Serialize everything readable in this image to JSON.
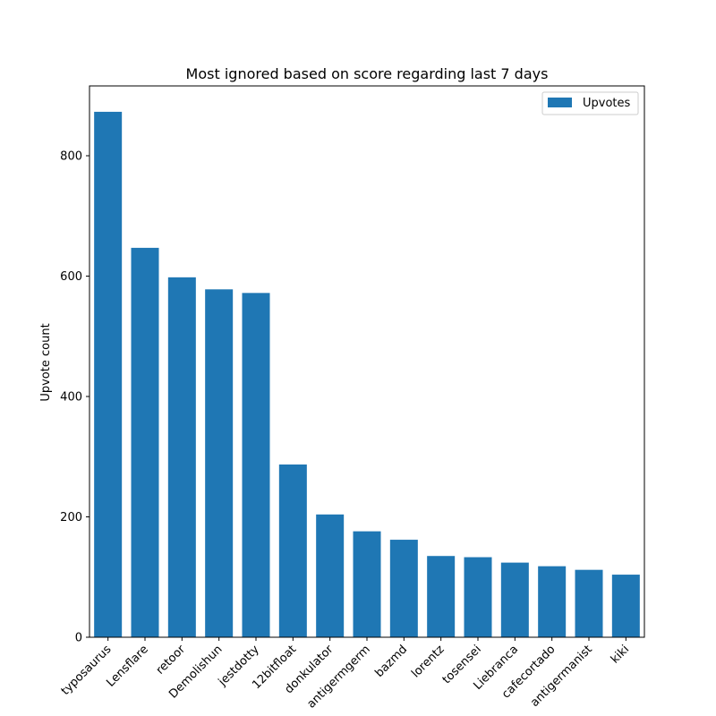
{
  "chart_data": {
    "type": "bar",
    "title": "Most ignored based on score regarding last 7 days",
    "xlabel": "",
    "ylabel": "Upvote count",
    "categories": [
      "typosaurus",
      "Lensflare",
      "retoor",
      "Demolishun",
      "jestdotty",
      "12bitfloat",
      "donkulator",
      "antigermgerm",
      "bazmd",
      "lorentz",
      "tosensei",
      "Liebranca",
      "cafecortado",
      "antigermanist",
      "kiki"
    ],
    "series": [
      {
        "name": "Upvotes",
        "values": [
          873,
          647,
          598,
          578,
          572,
          287,
          204,
          176,
          162,
          135,
          133,
          124,
          118,
          112,
          104
        ],
        "color": "#1f77b4"
      }
    ],
    "ylim": [
      0,
      916
    ],
    "yticks": [
      0,
      200,
      400,
      600,
      800
    ],
    "legend": "top-right",
    "grid": false
  }
}
